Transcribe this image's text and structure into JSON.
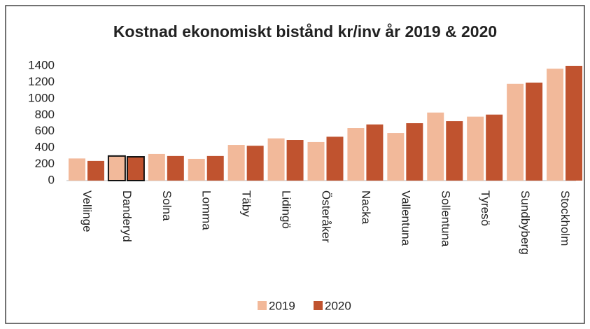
{
  "chart_data": {
    "type": "bar",
    "title": "Kostnad ekonomiskt bistånd kr/inv år 2019 & 2020",
    "categories": [
      "Vellinge",
      "Danderyd",
      "Solna",
      "Lomma",
      "Täby",
      "Lidingö",
      "Österåker",
      "Nacka",
      "Vallentuna",
      "Sollentuna",
      "Tyresö",
      "Sundbyberg",
      "Stockholm"
    ],
    "series": [
      {
        "name": "2019",
        "color": "#f2b99a",
        "values": [
          270,
          300,
          325,
          265,
          435,
          515,
          470,
          640,
          580,
          830,
          780,
          1180,
          1365
        ]
      },
      {
        "name": "2020",
        "color": "#c0532f",
        "values": [
          240,
          290,
          300,
          300,
          425,
          495,
          535,
          685,
          700,
          725,
          805,
          1195,
          1400
        ]
      }
    ],
    "highlight_category": "Danderyd",
    "ylim": [
      0,
      1400
    ],
    "yticks": [
      0,
      200,
      400,
      600,
      800,
      1000,
      1200,
      1400
    ],
    "grid": false,
    "legend": "bottom"
  }
}
